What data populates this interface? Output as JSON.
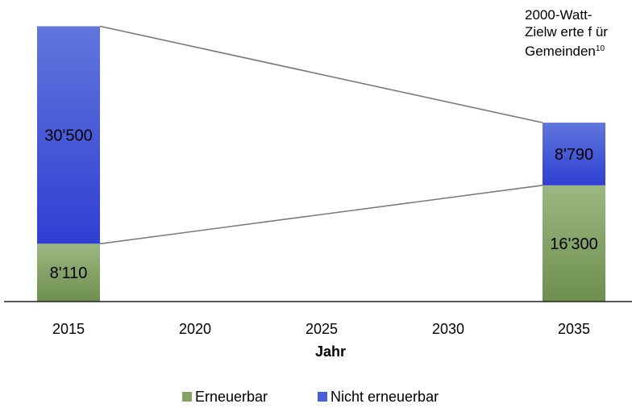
{
  "chart_data": {
    "type": "bar",
    "stacked": true,
    "categories": [
      "2015",
      "2020",
      "2025",
      "2030",
      "2035"
    ],
    "series": [
      {
        "name": "Erneuerbar",
        "values": [
          8110,
          null,
          null,
          null,
          16300
        ],
        "labels": [
          "8'110",
          "",
          "",
          "",
          "16'300"
        ],
        "color": "#86a266"
      },
      {
        "name": "Nicht erneuerbar",
        "values": [
          30500,
          null,
          null,
          null,
          8790
        ],
        "labels": [
          "30'500",
          "",
          "",
          "",
          "8'790"
        ],
        "color": "#4a5fd6"
      }
    ],
    "xlabel": "Jahr",
    "ylabel": "",
    "ylim": [
      0,
      41500
    ],
    "grid": false,
    "legend_position": "bottom",
    "connector_lines": true,
    "annotation": {
      "lines": [
        "2000-Watt-",
        "Zielw erte f ür",
        "Gemeinden"
      ],
      "superscript": "10"
    }
  }
}
